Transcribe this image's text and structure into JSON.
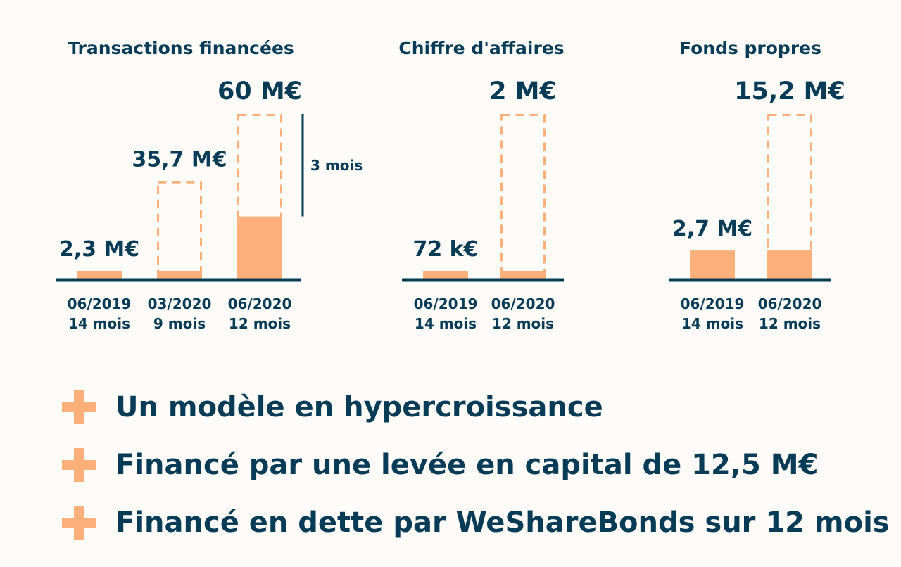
{
  "colors": {
    "navy": "#073b56",
    "orange": "#fdb07a"
  },
  "chart_data": [
    {
      "type": "bar",
      "title": "Transactions financées",
      "categories": [
        {
          "date": "06/2019",
          "duration": "14 mois"
        },
        {
          "date": "03/2020",
          "duration": "9 mois"
        },
        {
          "date": "06/2020",
          "duration": "12 mois"
        }
      ],
      "values": [
        2.3,
        35.7,
        60
      ],
      "actual": [
        2.3,
        2.3,
        23
      ],
      "value_labels": [
        "2,3 M€",
        "35,7 M€",
        "60 M€"
      ],
      "unit": "M€",
      "annotation": "3 mois"
    },
    {
      "type": "bar",
      "title": "Chiffre d'affaires",
      "categories": [
        {
          "date": "06/2019",
          "duration": "14 mois"
        },
        {
          "date": "06/2020",
          "duration": "12 mois"
        }
      ],
      "values": [
        0.072,
        2
      ],
      "actual": [
        0.072,
        0.072
      ],
      "value_labels": [
        "72 k€",
        "2 M€"
      ],
      "unit": "M€"
    },
    {
      "type": "bar",
      "title": "Fonds propres",
      "categories": [
        {
          "date": "06/2019",
          "duration": "14 mois"
        },
        {
          "date": "06/2020",
          "duration": "12 mois"
        }
      ],
      "values": [
        2.7,
        15.2
      ],
      "actual": [
        2.7,
        2.7
      ],
      "value_labels": [
        "2,7 M€",
        "15,2 M€"
      ],
      "unit": "M€"
    }
  ],
  "bullets": [
    "Un modèle en hypercroissance",
    "Financé par une levée en capital de 12,5 M€",
    "Financé en dette par WeShareBonds sur 12 mois"
  ]
}
